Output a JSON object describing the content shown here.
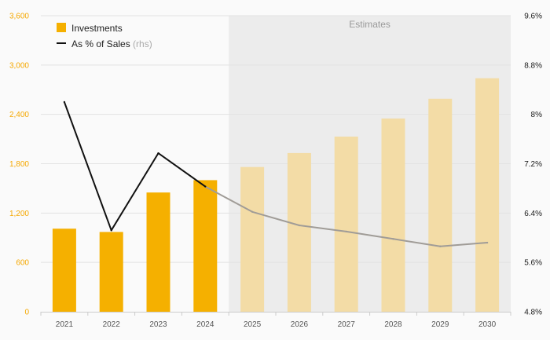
{
  "chart_data": {
    "type": "bar",
    "categories": [
      "2021",
      "2022",
      "2023",
      "2024",
      "2025",
      "2026",
      "2027",
      "2028",
      "2029",
      "2030"
    ],
    "series": [
      {
        "name": "Investments",
        "kind": "bar",
        "axis": "left",
        "values": [
          1010,
          970,
          1450,
          1600,
          1760,
          1930,
          2130,
          2350,
          2590,
          2840
        ]
      },
      {
        "name": "As % of Sales",
        "name_note": "(rhs)",
        "kind": "line",
        "axis": "right",
        "values": [
          8.2,
          6.12,
          7.37,
          6.83,
          6.42,
          6.2,
          6.1,
          5.98,
          5.86,
          5.92
        ]
      }
    ],
    "estimate_start_index": 4,
    "estimates_label": "Estimates",
    "ylim_left": [
      0,
      3600
    ],
    "ylim_right": [
      4.8,
      9.6
    ],
    "yticks_left": [
      "0",
      "600",
      "1,200",
      "1,800",
      "2,400",
      "3,000",
      "3,600"
    ],
    "yticks_right": [
      "4.8%",
      "5.6%",
      "6.4%",
      "7.2%",
      "8%",
      "8.8%",
      "9.6%"
    ],
    "grid": true,
    "legend_position": "top-left",
    "colors": {
      "bar_actual": "#f5b000",
      "bar_estimate": "#f3dca6",
      "line_actual": "#111111",
      "line_estimate": "#a09c97",
      "estimates_band": "#ececec",
      "left_tick_color": "#f5a800"
    }
  }
}
